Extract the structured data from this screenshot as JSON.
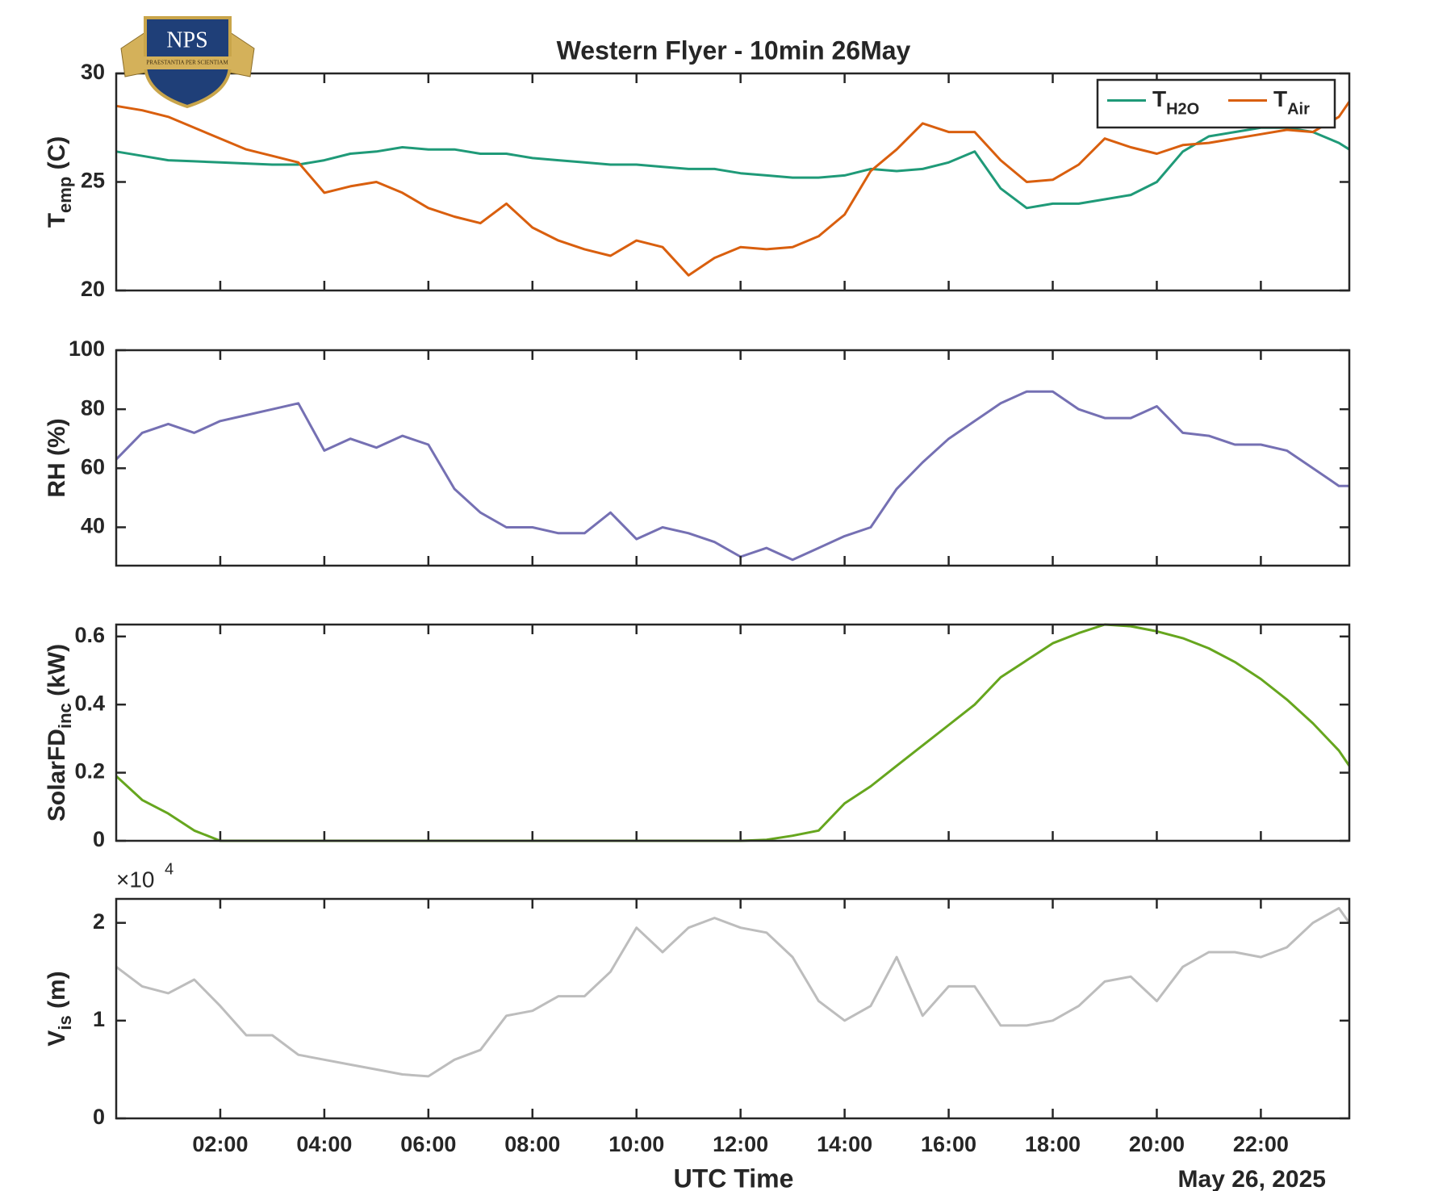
{
  "logo": {
    "text": "NPS",
    "motto": "PRAESTANTIA PER SCIENTIAM"
  },
  "title": "Western Flyer - 10min 26May",
  "xlabel": "UTC Time",
  "date_label": "May 26, 2025",
  "chart_data": [
    {
      "type": "line",
      "ylabel": "Temp (C)",
      "ylim": [
        20,
        30
      ],
      "yticks": [
        20,
        25,
        30
      ],
      "xlim": [
        0,
        23.7
      ],
      "legend": "upper right",
      "x": [
        0,
        0.5,
        1,
        1.5,
        2,
        2.5,
        3,
        3.5,
        4,
        4.5,
        5,
        5.5,
        6,
        6.5,
        7,
        7.5,
        8,
        8.5,
        9,
        9.5,
        10,
        10.5,
        11,
        11.5,
        12,
        12.5,
        13,
        13.5,
        14,
        14.5,
        15,
        15.5,
        16,
        16.5,
        17,
        17.5,
        18,
        18.5,
        19,
        19.5,
        20,
        20.5,
        21,
        21.5,
        22,
        22.5,
        23,
        23.5,
        23.7
      ],
      "series": [
        {
          "name": "TH2O",
          "color": "#1f9a78",
          "values": [
            26.4,
            26.2,
            26.0,
            25.95,
            25.9,
            25.85,
            25.8,
            25.8,
            26.0,
            26.3,
            26.4,
            26.6,
            26.5,
            26.5,
            26.3,
            26.3,
            26.1,
            26.0,
            25.9,
            25.8,
            25.8,
            25.7,
            25.6,
            25.6,
            25.4,
            25.3,
            25.2,
            25.2,
            25.3,
            25.6,
            25.5,
            25.6,
            25.9,
            26.4,
            24.7,
            23.8,
            24.0,
            24.0,
            24.2,
            24.4,
            25.0,
            26.4,
            27.1,
            27.3,
            27.5,
            27.5,
            27.3,
            26.8,
            26.5
          ]
        },
        {
          "name": "TAir",
          "color": "#d95f0e",
          "values": [
            28.5,
            28.3,
            28.0,
            27.5,
            27.0,
            26.5,
            26.2,
            25.9,
            24.5,
            24.8,
            25.0,
            24.5,
            23.8,
            23.4,
            23.1,
            24.0,
            22.9,
            22.3,
            21.9,
            21.6,
            22.3,
            22.0,
            20.7,
            21.5,
            22.0,
            21.9,
            22.0,
            22.5,
            23.5,
            25.5,
            26.5,
            27.7,
            27.3,
            27.3,
            26.0,
            25.0,
            25.1,
            25.8,
            27.0,
            26.6,
            26.3,
            26.7,
            26.8,
            27.0,
            27.2,
            27.4,
            27.3,
            28.0,
            28.7
          ]
        }
      ]
    },
    {
      "type": "line",
      "ylabel": "RH (%)",
      "ylim": [
        27,
        100
      ],
      "yticks": [
        40,
        60,
        80,
        100
      ],
      "xlim": [
        0,
        23.7
      ],
      "x": [
        0,
        0.5,
        1,
        1.5,
        2,
        2.5,
        3,
        3.5,
        4,
        4.5,
        5,
        5.5,
        6,
        6.5,
        7,
        7.5,
        8,
        8.5,
        9,
        9.5,
        10,
        10.5,
        11,
        11.5,
        12,
        12.5,
        13,
        13.5,
        14,
        14.5,
        15,
        15.5,
        16,
        16.5,
        17,
        17.5,
        18,
        18.5,
        19,
        19.5,
        20,
        20.5,
        21,
        21.5,
        22,
        22.5,
        23,
        23.5,
        23.7
      ],
      "series": [
        {
          "name": "RH",
          "color": "#7570b3",
          "values": [
            63,
            72,
            75,
            72,
            76,
            78,
            80,
            82,
            66,
            70,
            67,
            71,
            68,
            53,
            45,
            40,
            40,
            38,
            38,
            45,
            36,
            40,
            38,
            35,
            30,
            33,
            29,
            33,
            37,
            40,
            53,
            62,
            70,
            76,
            82,
            86,
            86,
            80,
            77,
            77,
            81,
            72,
            71,
            68,
            68,
            66,
            60,
            54,
            54
          ]
        }
      ]
    },
    {
      "type": "line",
      "ylabel": "SolarFDinc (kW)",
      "ylim": [
        0,
        0.635
      ],
      "yticks": [
        0,
        0.2,
        0.4,
        0.6
      ],
      "xlim": [
        0,
        23.7
      ],
      "x": [
        0,
        0.5,
        1,
        1.5,
        2,
        2.5,
        3,
        3.5,
        4,
        4.5,
        5,
        5.5,
        6,
        6.5,
        7,
        7.5,
        8,
        8.5,
        9,
        9.5,
        10,
        10.5,
        11,
        11.5,
        12,
        12.5,
        13,
        13.5,
        14,
        14.5,
        15,
        15.5,
        16,
        16.5,
        17,
        17.5,
        18,
        18.5,
        19,
        19.5,
        20,
        20.5,
        21,
        21.5,
        22,
        22.5,
        23,
        23.5,
        23.7
      ],
      "series": [
        {
          "name": "SolarFD",
          "color": "#66a61e",
          "values": [
            0.19,
            0.12,
            0.08,
            0.03,
            0,
            0,
            0,
            0,
            0,
            0,
            0,
            0,
            0,
            0,
            0,
            0,
            0,
            0,
            0,
            0,
            0,
            0,
            0,
            0,
            0,
            0.003,
            0.015,
            0.03,
            0.11,
            0.16,
            0.22,
            0.28,
            0.34,
            0.4,
            0.48,
            0.53,
            0.58,
            0.61,
            0.635,
            0.63,
            0.615,
            0.595,
            0.565,
            0.525,
            0.475,
            0.415,
            0.345,
            0.265,
            0.22
          ]
        }
      ]
    },
    {
      "type": "line",
      "ylabel": "Vis (m)",
      "ylim": [
        0,
        22450
      ],
      "yticks": [
        0,
        {
          "value": 10000,
          "label": "1"
        },
        {
          "value": 20000,
          "label": "2"
        }
      ],
      "exponent": "×10",
      "exponent_power": "4",
      "xlim": [
        0,
        23.7
      ],
      "xticks": [
        {
          "value": 2,
          "label": "02:00"
        },
        {
          "value": 4,
          "label": "04:00"
        },
        {
          "value": 6,
          "label": "06:00"
        },
        {
          "value": 8,
          "label": "08:00"
        },
        {
          "value": 10,
          "label": "10:00"
        },
        {
          "value": 12,
          "label": "12:00"
        },
        {
          "value": 14,
          "label": "14:00"
        },
        {
          "value": 16,
          "label": "16:00"
        },
        {
          "value": 18,
          "label": "18:00"
        },
        {
          "value": 20,
          "label": "20:00"
        },
        {
          "value": 22,
          "label": "22:00"
        }
      ],
      "x": [
        0,
        0.5,
        1,
        1.5,
        2,
        2.5,
        3,
        3.5,
        4,
        4.5,
        5,
        5.5,
        6,
        6.5,
        7,
        7.5,
        8,
        8.5,
        9,
        9.5,
        10,
        10.5,
        11,
        11.5,
        12,
        12.5,
        13,
        13.5,
        14,
        14.5,
        15,
        15.5,
        16,
        16.5,
        17,
        17.5,
        18,
        18.5,
        19,
        19.5,
        20,
        20.5,
        21,
        21.5,
        22,
        22.5,
        23,
        23.5,
        23.7
      ],
      "series": [
        {
          "name": "Vis",
          "color": "#bdbdbd",
          "values": [
            15500,
            13500,
            12800,
            14200,
            11500,
            8500,
            8500,
            6500,
            6000,
            5500,
            5000,
            4500,
            4300,
            6000,
            7000,
            10500,
            11000,
            12500,
            12500,
            15000,
            19500,
            17000,
            19500,
            20500,
            19500,
            19000,
            16500,
            12000,
            10000,
            11500,
            16500,
            10500,
            13500,
            13500,
            9500,
            9500,
            10000,
            11500,
            14000,
            14500,
            12000,
            15500,
            17000,
            17000,
            16500,
            17500,
            20000,
            21500,
            20000
          ]
        }
      ]
    }
  ]
}
